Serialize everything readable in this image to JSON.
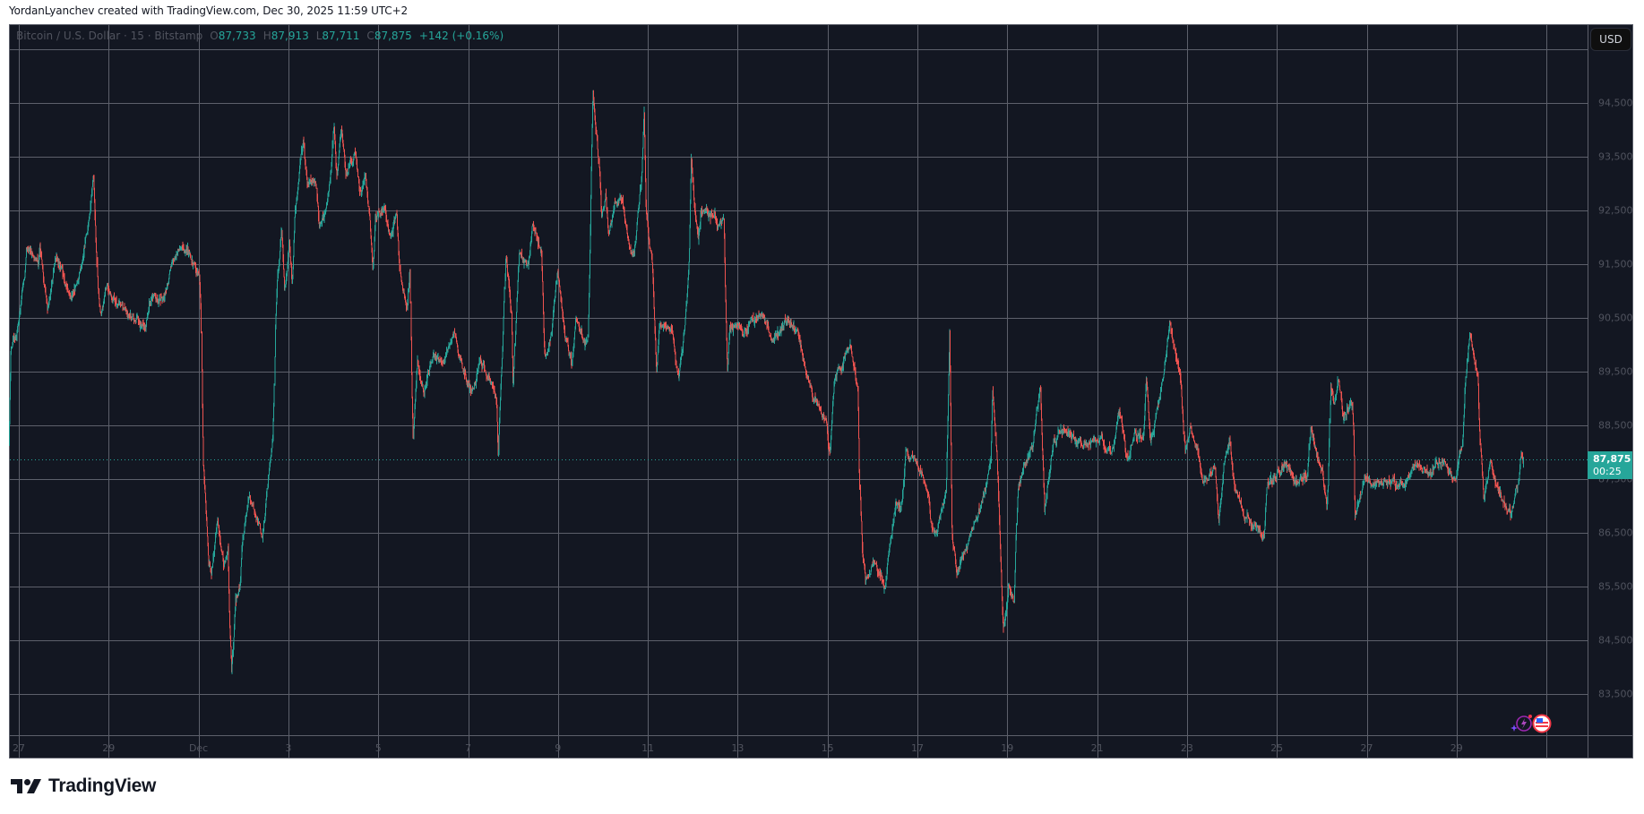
{
  "credit": "YordanLyanchev created with TradingView.com, Dec 30, 2025 11:59 UTC+2",
  "legend": {
    "symbol": "Bitcoin / U.S. Dollar · 15 · Bitstamp",
    "o_label": "O",
    "open": "87,733",
    "h_label": "H",
    "high": "87,913",
    "l_label": "L",
    "low": "87,711",
    "c_label": "C",
    "close": "87,875",
    "change": "+142 (+0.16%)"
  },
  "currency_button": "USD",
  "price_tag": {
    "price": "87,875",
    "countdown": "00:25"
  },
  "logo_text": "TradingView",
  "icons": [
    "lightning-sparkle-icon",
    "us-flag-icon"
  ],
  "colors": {
    "background": "#131722",
    "up": "#26a69a",
    "down": "#ef5350",
    "grid": "#5d606b",
    "axis_text": "#50535e"
  },
  "chart_data": {
    "type": "candlestick",
    "symbol": "BTCUSD",
    "interval": "15",
    "exchange": "Bitstamp",
    "last_bar": {
      "open": 87733,
      "high": 87913,
      "low": 87711,
      "close": 87875
    },
    "ylim": [
      82500,
      95500
    ],
    "y_ticks": [
      83500,
      84500,
      85500,
      86500,
      87500,
      88500,
      89500,
      90500,
      91500,
      92500,
      93500,
      94500
    ],
    "y_tick_labels": [
      "83,500",
      "84,500",
      "85,500",
      "86,500",
      "87,500",
      "88,500",
      "89,500",
      "90,500",
      "91,500",
      "92,500",
      "93,500",
      "94,500"
    ],
    "x_tick_dates": [
      "2025-11-27",
      "2025-11-29",
      "2025-12-01",
      "2025-12-03",
      "2025-12-05",
      "2025-12-07",
      "2025-12-09",
      "2025-12-11",
      "2025-12-13",
      "2025-12-15",
      "2025-12-17",
      "2025-12-19",
      "2025-12-21",
      "2025-12-23",
      "2025-12-25",
      "2025-12-27",
      "2025-12-29"
    ],
    "x_tick_labels": [
      "27",
      "29",
      "Dec",
      "3",
      "5",
      "7",
      "9",
      "11",
      "13",
      "15",
      "17",
      "19",
      "21",
      "23",
      "25",
      "27",
      "29"
    ],
    "grid": true,
    "approx_price_path": [
      [
        "2025-11-26T19:00",
        88200
      ],
      [
        "2025-11-26T20:00",
        89930
      ],
      [
        "2025-11-26T23:30",
        90290
      ],
      [
        "2025-11-27T03:30",
        91350
      ],
      [
        "2025-11-27T04:20",
        91850
      ],
      [
        "2025-11-27T10:40",
        91500
      ],
      [
        "2025-11-27T11:30",
        91890
      ],
      [
        "2025-11-27T15:30",
        90650
      ],
      [
        "2025-11-27T20:15",
        91640
      ],
      [
        "2025-11-28T04:15",
        90790
      ],
      [
        "2025-11-28T10:38",
        91570
      ],
      [
        "2025-11-28T16:12",
        93060
      ],
      [
        "2025-11-28T17:00",
        92350
      ],
      [
        "2025-11-28T18:36",
        91000
      ],
      [
        "2025-11-28T20:12",
        90500
      ],
      [
        "2025-11-28T23:23",
        91140
      ],
      [
        "2025-11-29T08:57",
        90570
      ],
      [
        "2025-11-29T20:08",
        90360
      ],
      [
        "2025-11-29T23:19",
        90930
      ],
      [
        "2025-11-30T05:41",
        90800
      ],
      [
        "2025-11-30T10:29",
        91570
      ],
      [
        "2025-11-30T15:16",
        91850
      ],
      [
        "2025-11-30T18:27",
        91700
      ],
      [
        "2025-12-01T00:50",
        91215
      ],
      [
        "2025-12-01T01:38",
        90500
      ],
      [
        "2025-12-01T02:07",
        89080
      ],
      [
        "2025-12-01T02:45",
        87730
      ],
      [
        "2025-12-01T04:02",
        87080
      ],
      [
        "2025-12-01T05:38",
        86020
      ],
      [
        "2025-12-01T07:13",
        85730
      ],
      [
        "2025-12-01T10:25",
        86730
      ],
      [
        "2025-12-01T13:36",
        85950
      ],
      [
        "2025-12-01T16:00",
        86200
      ],
      [
        "2025-12-01T16:48",
        84950
      ],
      [
        "2025-12-01T18:04",
        83880
      ],
      [
        "2025-12-01T20:00",
        85230
      ],
      [
        "2025-12-01T22:22",
        85520
      ],
      [
        "2025-12-01T23:58",
        86520
      ],
      [
        "2025-12-02T03:10",
        87300
      ],
      [
        "2025-12-02T05:34",
        86940
      ],
      [
        "2025-12-02T10:21",
        86440
      ],
      [
        "2025-12-02T13:32",
        87510
      ],
      [
        "2025-12-02T15:56",
        88150
      ],
      [
        "2025-12-02T16:44",
        89220
      ],
      [
        "2025-12-02T17:13",
        90290
      ],
      [
        "2025-12-02T18:20",
        91220
      ],
      [
        "2025-12-02T20:43",
        92210
      ],
      [
        "2025-12-02T22:19",
        90930
      ],
      [
        "2025-12-03T00:42",
        91930
      ],
      [
        "2025-12-03T02:18",
        91070
      ],
      [
        "2025-12-03T03:54",
        92500
      ],
      [
        "2025-12-03T06:17",
        93280
      ],
      [
        "2025-12-03T08:21",
        93850
      ],
      [
        "2025-12-03T10:16",
        93000
      ],
      [
        "2025-12-03T15:04",
        93070
      ],
      [
        "2025-12-03T16:39",
        92210
      ],
      [
        "2025-12-03T20:38",
        92500
      ],
      [
        "2025-12-03T23:02",
        93350
      ],
      [
        "2025-12-04T00:37",
        94130
      ],
      [
        "2025-12-04T02:13",
        93140
      ],
      [
        "2025-12-04T04:36",
        94060
      ],
      [
        "2025-12-04T07:00",
        93210
      ],
      [
        "2025-12-04T11:47",
        93560
      ],
      [
        "2025-12-04T14:58",
        92780
      ],
      [
        "2025-12-04T17:22",
        93140
      ],
      [
        "2025-12-04T19:46",
        92210
      ],
      [
        "2025-12-04T21:22",
        91300
      ],
      [
        "2025-12-04T22:57",
        92350
      ],
      [
        "2025-12-05T03:44",
        92570
      ],
      [
        "2025-12-05T06:56",
        91930
      ],
      [
        "2025-12-05T10:08",
        92430
      ],
      [
        "2025-12-05T11:44",
        91350
      ],
      [
        "2025-12-05T15:42",
        90650
      ],
      [
        "2025-12-05T17:17",
        91350
      ],
      [
        "2025-12-05T18:04",
        89360
      ],
      [
        "2025-12-05T18:53",
        88230
      ],
      [
        "2025-12-05T19:41",
        88870
      ],
      [
        "2025-12-05T21:16",
        89790
      ],
      [
        "2025-12-06T00:27",
        89080
      ],
      [
        "2025-12-06T05:15",
        89790
      ],
      [
        "2025-12-06T11:38",
        89650
      ],
      [
        "2025-12-06T16:25",
        90220
      ],
      [
        "2025-12-06T21:12",
        89580
      ],
      [
        "2025-12-07T01:59",
        89150
      ],
      [
        "2025-12-07T06:46",
        89720
      ],
      [
        "2025-12-07T13:09",
        89220
      ],
      [
        "2025-12-07T15:33",
        88870
      ],
      [
        "2025-12-07T16:21",
        87870
      ],
      [
        "2025-12-07T17:08",
        88720
      ],
      [
        "2025-12-07T18:44",
        89930
      ],
      [
        "2025-12-07T20:20",
        91640
      ],
      [
        "2025-12-07T23:31",
        90650
      ],
      [
        "2025-12-08T00:19",
        89220
      ],
      [
        "2025-12-08T03:30",
        91640
      ],
      [
        "2025-12-08T08:18",
        91500
      ],
      [
        "2025-12-08T10:41",
        92210
      ],
      [
        "2025-12-08T15:29",
        91710
      ],
      [
        "2025-12-08T17:04",
        89930
      ],
      [
        "2025-12-08T17:52",
        89720
      ],
      [
        "2025-12-08T21:03",
        90290
      ],
      [
        "2025-12-08T23:56",
        91350
      ],
      [
        "2025-12-09T04:15",
        90080
      ],
      [
        "2025-12-09T07:26",
        89650
      ],
      [
        "2025-12-09T09:49",
        90500
      ],
      [
        "2025-12-09T13:00",
        90220
      ],
      [
        "2025-12-09T16:12",
        90080
      ],
      [
        "2025-12-09T17:28",
        92070
      ],
      [
        "2025-12-09T18:07",
        93490
      ],
      [
        "2025-12-09T18:55",
        94630
      ],
      [
        "2025-12-09T20:59",
        93920
      ],
      [
        "2025-12-09T22:35",
        93210
      ],
      [
        "2025-12-09T23:22",
        92350
      ],
      [
        "2025-12-10T01:46",
        92780
      ],
      [
        "2025-12-10T03:21",
        92070
      ],
      [
        "2025-12-10T06:33",
        92570
      ],
      [
        "2025-12-10T09:44",
        92710
      ],
      [
        "2025-12-10T12:56",
        92210
      ],
      [
        "2025-12-10T14:32",
        91930
      ],
      [
        "2025-12-10T16:55",
        91640
      ],
      [
        "2025-12-10T19:19",
        92500
      ],
      [
        "2025-12-10T20:55",
        93140
      ],
      [
        "2025-12-10T22:12",
        94420
      ],
      [
        "2025-12-10T23:19",
        92570
      ],
      [
        "2025-12-11T02:30",
        91500
      ],
      [
        "2025-12-11T04:06",
        90290
      ],
      [
        "2025-12-11T04:54",
        89500
      ],
      [
        "2025-12-11T06:29",
        90360
      ],
      [
        "2025-12-11T12:52",
        90290
      ],
      [
        "2025-12-11T16:51",
        89360
      ],
      [
        "2025-12-11T20:02",
        90360
      ],
      [
        "2025-12-11T22:26",
        91640
      ],
      [
        "2025-12-11T23:33",
        93490
      ],
      [
        "2025-12-12T00:50",
        92570
      ],
      [
        "2025-12-12T03:14",
        91930
      ],
      [
        "2025-12-12T04:49",
        92570
      ],
      [
        "2025-12-12T11:12",
        92350
      ],
      [
        "2025-12-12T16:48",
        92350
      ],
      [
        "2025-12-12T17:36",
        91000
      ],
      [
        "2025-12-12T18:42",
        89500
      ],
      [
        "2025-12-12T19:58",
        90290
      ],
      [
        "2025-12-12T23:57",
        90360
      ],
      [
        "2025-12-13T04:45",
        90290
      ],
      [
        "2025-12-13T12:43",
        90570
      ],
      [
        "2025-12-13T19:06",
        90080
      ],
      [
        "2025-12-14T03:05",
        90430
      ],
      [
        "2025-12-14T08:00",
        90220
      ],
      [
        "2025-12-14T14:15",
        89360
      ],
      [
        "2025-12-14T17:27",
        89010
      ],
      [
        "2025-12-14T23:50",
        88510
      ],
      [
        "2025-12-15T01:25",
        87940
      ],
      [
        "2025-12-15T03:49",
        89220
      ],
      [
        "2025-12-15T09:24",
        89790
      ],
      [
        "2025-12-15T12:35",
        89930
      ],
      [
        "2025-12-15T16:35",
        89080
      ],
      [
        "2025-12-15T17:22",
        87440
      ],
      [
        "2025-12-15T18:58",
        86090
      ],
      [
        "2025-12-15T20:34",
        85590
      ],
      [
        "2025-12-16T01:21",
        86020
      ],
      [
        "2025-12-16T06:56",
        85520
      ],
      [
        "2025-12-16T12:30",
        87080
      ],
      [
        "2025-12-16T15:41",
        86940
      ],
      [
        "2025-12-16T18:06",
        87990
      ],
      [
        "2025-12-16T23:41",
        87800
      ],
      [
        "2025-12-17T06:04",
        87220
      ],
      [
        "2025-12-17T07:39",
        86660
      ],
      [
        "2025-12-17T10:51",
        86520
      ],
      [
        "2025-12-17T15:37",
        87220
      ],
      [
        "2025-12-17T17:32",
        90290
      ],
      [
        "2025-12-17T18:49",
        86370
      ],
      [
        "2025-12-17T21:13",
        85660
      ],
      [
        "2025-12-18T02:48",
        86230
      ],
      [
        "2025-12-18T07:35",
        86660
      ],
      [
        "2025-12-18T12:23",
        87300
      ],
      [
        "2025-12-18T15:33",
        87940
      ],
      [
        "2025-12-18T16:22",
        89220
      ],
      [
        "2025-12-18T18:45",
        87940
      ],
      [
        "2025-12-18T21:09",
        85590
      ],
      [
        "2025-12-18T22:16",
        84660
      ],
      [
        "2025-12-19T01:08",
        85520
      ],
      [
        "2025-12-19T04:00",
        85170
      ],
      [
        "2025-12-19T05:55",
        87370
      ],
      [
        "2025-12-19T09:07",
        87800
      ],
      [
        "2025-12-19T13:54",
        88080
      ],
      [
        "2025-12-19T17:53",
        89290
      ],
      [
        "2025-12-19T20:17",
        86940
      ],
      [
        "2025-12-20T01:04",
        88230
      ],
      [
        "2025-12-20T07:26",
        88440
      ],
      [
        "2025-12-20T13:49",
        88150
      ],
      [
        "2025-12-20T23:24",
        88220
      ],
      [
        "2025-12-21T02:35",
        88370
      ],
      [
        "2025-12-21T04:11",
        88010
      ],
      [
        "2025-12-21T08:58",
        88080
      ],
      [
        "2025-12-21T12:10",
        88790
      ],
      [
        "2025-12-21T16:09",
        87800
      ],
      [
        "2025-12-21T20:08",
        88300
      ],
      [
        "2025-12-22T00:55",
        88370
      ],
      [
        "2025-12-22T02:31",
        89360
      ],
      [
        "2025-12-22T04:55",
        88150
      ],
      [
        "2025-12-22T10:29",
        89150
      ],
      [
        "2025-12-22T14:57",
        90500
      ],
      [
        "2025-12-22T17:40",
        89930
      ],
      [
        "2025-12-22T20:52",
        89360
      ],
      [
        "2025-12-22T23:15",
        88080
      ],
      [
        "2025-12-23T02:27",
        88510
      ],
      [
        "2025-12-23T05:38",
        88080
      ],
      [
        "2025-12-23T08:50",
        87370
      ],
      [
        "2025-12-23T15:13",
        87800
      ],
      [
        "2025-12-23T17:08",
        86660
      ],
      [
        "2025-12-23T20:00",
        87800
      ],
      [
        "2025-12-23T23:11",
        88230
      ],
      [
        "2025-12-24T01:35",
        87370
      ],
      [
        "2025-12-24T07:58",
        86800
      ],
      [
        "2025-12-24T17:31",
        86440
      ],
      [
        "2025-12-24T19:07",
        87370
      ],
      [
        "2025-12-25T02:18",
        87650
      ],
      [
        "2025-12-25T05:30",
        87800
      ],
      [
        "2025-12-25T11:05",
        87370
      ],
      [
        "2025-12-25T16:40",
        87580
      ],
      [
        "2025-12-25T18:16",
        88440
      ],
      [
        "2025-12-26T00:39",
        87650
      ],
      [
        "2025-12-26T03:02",
        86940
      ],
      [
        "2025-12-26T03:50",
        87440
      ],
      [
        "2025-12-26T04:57",
        89220
      ],
      [
        "2025-12-26T07:02",
        88800
      ],
      [
        "2025-12-26T09:25",
        89360
      ],
      [
        "2025-12-26T11:48",
        88650
      ],
      [
        "2025-12-26T16:35",
        88860
      ],
      [
        "2025-12-26T17:24",
        88230
      ],
      [
        "2025-12-26T17:53",
        86730
      ],
      [
        "2025-12-26T19:47",
        87080
      ],
      [
        "2025-12-26T22:58",
        87510
      ],
      [
        "2025-12-27T08:32",
        87440
      ],
      [
        "2025-12-27T21:18",
        87440
      ],
      [
        "2025-12-28T02:05",
        87800
      ],
      [
        "2025-12-28T08:28",
        87580
      ],
      [
        "2025-12-28T17:15",
        87940
      ],
      [
        "2025-12-28T22:49",
        87440
      ],
      [
        "2025-12-29T01:13",
        87800
      ],
      [
        "2025-12-29T03:37",
        88230
      ],
      [
        "2025-12-29T04:54",
        89220
      ],
      [
        "2025-12-29T07:08",
        90220
      ],
      [
        "2025-12-29T11:36",
        89510
      ],
      [
        "2025-12-29T12:23",
        88510
      ],
      [
        "2025-12-29T14:47",
        87150
      ],
      [
        "2025-12-29T17:59",
        87870
      ],
      [
        "2025-12-30T00:22",
        87150
      ],
      [
        "2025-12-30T05:07",
        86870
      ],
      [
        "2025-12-30T09:06",
        87370
      ],
      [
        "2025-12-30T10:42",
        88000
      ],
      [
        "2025-12-30T11:45",
        87875
      ]
    ]
  }
}
